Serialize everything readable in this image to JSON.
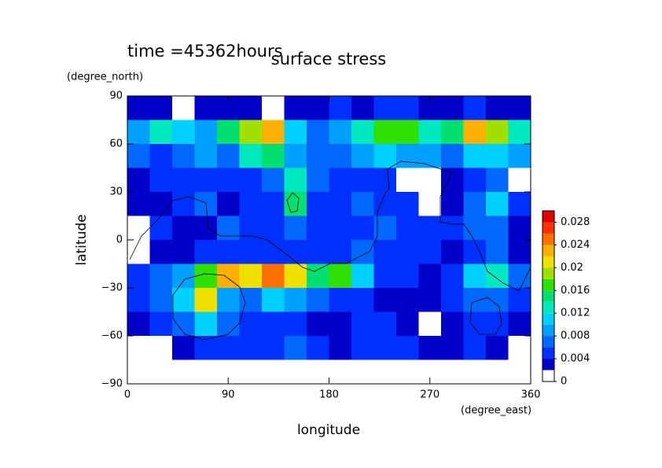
{
  "chart_data": {
    "type": "heatmap",
    "title": "surface stress",
    "subtitle": "time =45362hours",
    "x_label": "longitude",
    "x_unit": "(degree_east)",
    "y_label": "latitude",
    "y_unit": "(degree_north)",
    "xlim": [
      0,
      360
    ],
    "ylim": [
      -90,
      90
    ],
    "xticks": [
      0,
      90,
      180,
      270,
      360
    ],
    "yticks": [
      {
        "value": -90,
        "label": "−90"
      },
      {
        "value": -60,
        "label": "−60"
      },
      {
        "value": -30,
        "label": "−30"
      },
      0,
      30,
      60,
      90
    ],
    "x": [
      10,
      30,
      50,
      70,
      90,
      110,
      130,
      150,
      170,
      190,
      210,
      230,
      250,
      270,
      290,
      310,
      330,
      350
    ],
    "y": [
      82.5,
      67.5,
      52.5,
      37.5,
      22.5,
      7.5,
      -7.5,
      -22.5,
      -37.5,
      -52.5,
      -67.5,
      -82.5
    ],
    "z": [
      [
        0.003,
        0.002,
        0.001,
        0.002,
        0.003,
        0.002,
        0.001,
        0.002,
        0.003,
        0.004,
        0.003,
        0.004,
        0.004,
        0.003,
        0.003,
        0.004,
        0.003,
        0.002
      ],
      [
        0.008,
        0.012,
        0.01,
        0.008,
        0.014,
        0.018,
        0.022,
        0.01,
        0.006,
        0.008,
        0.012,
        0.016,
        0.016,
        0.012,
        0.014,
        0.022,
        0.018,
        0.012
      ],
      [
        0.006,
        0.004,
        0.006,
        0.008,
        0.006,
        0.012,
        0.014,
        0.008,
        0.006,
        0.006,
        0.008,
        0.01,
        0.008,
        0.008,
        0.006,
        0.01,
        0.01,
        0.008
      ],
      [
        0.002,
        0.004,
        0.004,
        0.004,
        0.004,
        0.004,
        0.006,
        0.012,
        0.006,
        0.004,
        0.004,
        0.004,
        0.001,
        0.001,
        0.002,
        0.004,
        0.006,
        0.001
      ],
      [
        0.002,
        0.002,
        0.004,
        0.006,
        0.002,
        0.004,
        0.004,
        0.014,
        0.004,
        0.004,
        0.006,
        0.004,
        0.004,
        0.001,
        0.002,
        0.006,
        0.01,
        0.004
      ],
      [
        0.001,
        0.004,
        0.002,
        0.002,
        0.006,
        0.004,
        0.004,
        0.006,
        0.004,
        0.004,
        0.004,
        0.006,
        0.004,
        0.004,
        0.004,
        0.006,
        0.006,
        0.002
      ],
      [
        0.001,
        0.002,
        0.002,
        0.004,
        0.004,
        0.004,
        0.004,
        0.004,
        0.004,
        0.004,
        0.006,
        0.004,
        0.004,
        0.004,
        0.002,
        0.004,
        0.006,
        0.002
      ],
      [
        0.004,
        0.006,
        0.008,
        0.016,
        0.022,
        0.02,
        0.024,
        0.02,
        0.014,
        0.016,
        0.01,
        0.004,
        0.004,
        0.002,
        0.004,
        0.01,
        0.012,
        0.006
      ],
      [
        0.004,
        0.006,
        0.01,
        0.02,
        0.008,
        0.006,
        0.01,
        0.008,
        0.006,
        0.004,
        0.004,
        0.002,
        0.002,
        0.002,
        0.004,
        0.006,
        0.006,
        0.004
      ],
      [
        0.002,
        0.004,
        0.006,
        0.01,
        0.006,
        0.004,
        0.004,
        0.004,
        0.002,
        0.002,
        0.004,
        0.004,
        0.002,
        0.001,
        0.002,
        0.004,
        0.004,
        0.002
      ],
      [
        0.001,
        0.001,
        0.002,
        0.004,
        0.004,
        0.004,
        0.004,
        0.006,
        0.004,
        0.002,
        0.004,
        0.004,
        0.004,
        0.002,
        0.002,
        0.004,
        0.002,
        0.001
      ],
      [
        0,
        0,
        0,
        0,
        0,
        0,
        0,
        0,
        0,
        0,
        0,
        0,
        0,
        0,
        0,
        0,
        0,
        0
      ]
    ],
    "colorbar": {
      "clim": [
        0,
        0.03
      ],
      "levels": [
        0,
        0.002,
        0.004,
        0.006,
        0.008,
        0.01,
        0.012,
        0.014,
        0.016,
        0.018,
        0.02,
        0.022,
        0.024,
        0.026,
        0.028
      ],
      "colors": [
        "#ffffff",
        "#0000c8",
        "#0030ff",
        "#0068ff",
        "#00a0ff",
        "#00d0ff",
        "#00e8c0",
        "#00e070",
        "#30e000",
        "#a0e000",
        "#f0e000",
        "#ffb000",
        "#ff7000",
        "#ff3000",
        "#e00000"
      ],
      "ticks": [
        0,
        0.004,
        0.008,
        0.012,
        0.016,
        0.02,
        0.024,
        0.028
      ]
    }
  }
}
